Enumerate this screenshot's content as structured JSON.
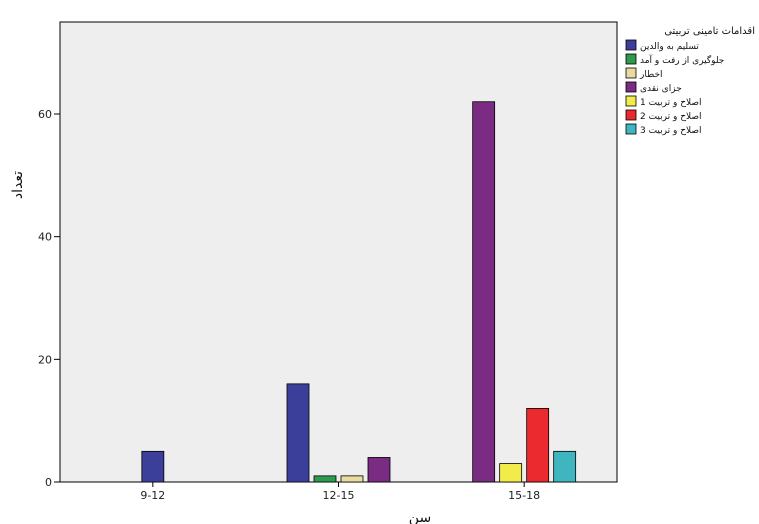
{
  "chart_data": {
    "type": "bar",
    "xlabel": "سن",
    "ylabel": "تعداد",
    "ylim": [
      0,
      75
    ],
    "yticks": [
      0,
      20,
      40,
      60
    ],
    "categories": [
      "9-12",
      "12-15",
      "15-18"
    ],
    "legend_title": "اقدامات تامینی تربیتی",
    "legend_position": "right",
    "series": [
      {
        "name": "تسلیم به والدین",
        "color": "#3c3f9a",
        "values": [
          5,
          16,
          0
        ]
      },
      {
        "name": "جلوگیری از رفت و آمد",
        "color": "#2e9a4f",
        "values": [
          0,
          1,
          0
        ]
      },
      {
        "name": "اخطار",
        "color": "#e9dba0",
        "values": [
          0,
          1,
          0
        ]
      },
      {
        "name": "جزای نقدی",
        "color": "#7a2b82",
        "values": [
          0,
          4,
          62
        ]
      },
      {
        "name": "اصلاح و تربیت 1",
        "color": "#f2ec4a",
        "values": [
          0,
          0,
          3
        ]
      },
      {
        "name": "اصلاح و تربیت 2",
        "color": "#ea2a2e",
        "values": [
          0,
          0,
          12
        ]
      },
      {
        "name": "اصلاح و تربیت 3",
        "color": "#3fb6bf",
        "values": [
          0,
          0,
          5
        ]
      }
    ]
  }
}
